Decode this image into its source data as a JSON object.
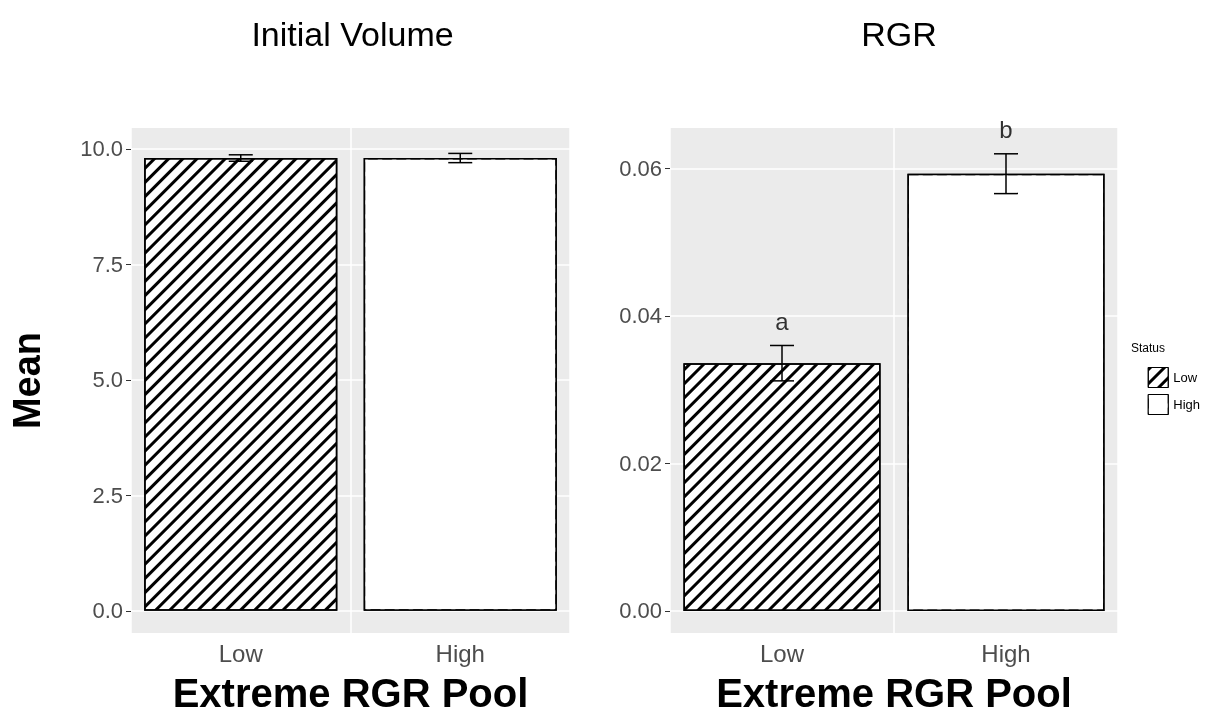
{
  "chart_data": [
    {
      "type": "bar",
      "title": "Initial Volume",
      "xlabel": "Extreme RGR Pool",
      "ylabel": "Mean",
      "categories": [
        "Low",
        "High"
      ],
      "series": [
        {
          "color": "#000000",
          "values": [
            9.8,
            null
          ],
          "errors": [
            0.07,
            null
          ]
        },
        {
          "color": "#ffffff",
          "values": [
            null,
            9.8
          ],
          "errors": [
            null,
            0.1
          ]
        }
      ],
      "ylim": [
        -0.48,
        10.45
      ],
      "yticks": [
        {
          "value": 0,
          "label": "0.0"
        },
        {
          "value": 2.5,
          "label": "2.5"
        },
        {
          "value": 5,
          "label": "5.0"
        },
        {
          "value": 7.5,
          "label": "7.5"
        },
        {
          "value": 10,
          "label": "10.0"
        }
      ],
      "grid": true,
      "legend": false
    },
    {
      "type": "bar",
      "title": "RGR",
      "xlabel": "Extreme RGR Pool",
      "legend_title": "Status",
      "categories": [
        "Low",
        "High"
      ],
      "series": [
        {
          "name": "Low",
          "color": "#000000",
          "values": [
            0.0336,
            null
          ],
          "errors": [
            0.0024,
            null
          ]
        },
        {
          "name": "High",
          "color": "#ffffff",
          "values": [
            null,
            0.0593
          ],
          "errors": [
            null,
            0.0027
          ]
        }
      ],
      "annotations": [
        "a",
        "b"
      ],
      "ylim": [
        -0.003,
        0.0655
      ],
      "yticks": [
        {
          "value": 0,
          "label": "0.00"
        },
        {
          "value": 0.02,
          "label": "0.02"
        },
        {
          "value": 0.04,
          "label": "0.04"
        },
        {
          "value": 0.06,
          "label": "0.06"
        }
      ],
      "grid": true,
      "legend": "right"
    }
  ]
}
